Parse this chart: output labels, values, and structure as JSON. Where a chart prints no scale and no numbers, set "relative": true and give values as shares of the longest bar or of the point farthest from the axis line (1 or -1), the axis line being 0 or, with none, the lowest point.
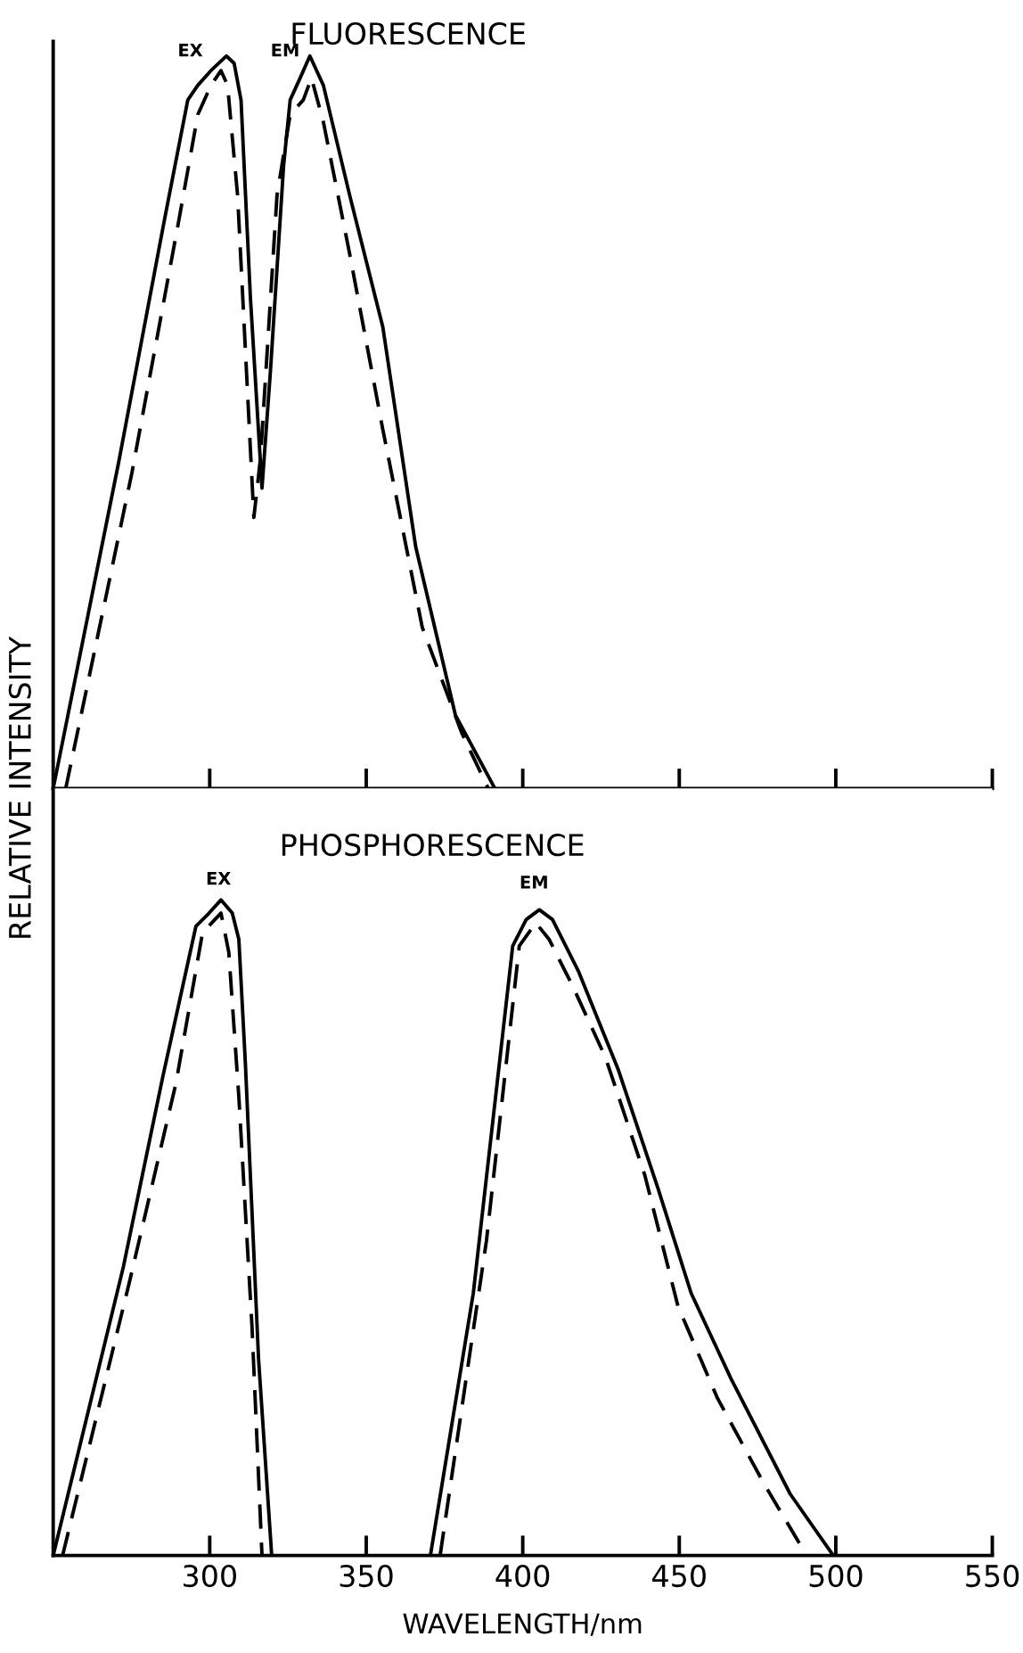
{
  "chart_data": [
    {
      "type": "line",
      "title": "FLUORESCENCE",
      "ylabel": "RELATIVE INTENSITY",
      "relative": true,
      "xlim": [
        250,
        550
      ],
      "xticks": [
        300,
        350,
        400,
        450,
        500,
        550
      ],
      "tick_labels": false,
      "legend": false,
      "grid": false,
      "marker": "none",
      "series": [
        {
          "color": "#000000",
          "line_style": "solid",
          "x": [
            250,
            270.9,
            285.7,
            293,
            296.2,
            300.4,
            305.3,
            307.8,
            310,
            313,
            316.7,
            319.4,
            323.6,
            325.7,
            328.9,
            332,
            336.3,
            344.7,
            355.3,
            365.8,
            378.5,
            391.1
          ],
          "values": [
            0,
            0.445,
            0.78,
            0.94,
            0.96,
            0.98,
            1.0,
            0.99,
            0.94,
            0.67,
            0.41,
            0.57,
            0.85,
            0.94,
            0.97,
            1.0,
            0.96,
            0.81,
            0.63,
            0.33,
            0.1,
            0
          ]
        },
        {
          "color": "#000000",
          "line_style": "dashed",
          "x": [
            254,
            275.1,
            289.9,
            296.2,
            300.4,
            303.6,
            305.7,
            308.9,
            314.1,
            316.2,
            321.5,
            325.7,
            329.9,
            332.5,
            336.3,
            344.7,
            355.3,
            367.9,
            380.6,
            389
          ],
          "values": [
            0,
            0.43,
            0.77,
            0.92,
            0.96,
            0.98,
            0.96,
            0.81,
            0.37,
            0.45,
            0.81,
            0.92,
            0.94,
            0.97,
            0.91,
            0.73,
            0.49,
            0.22,
            0.075,
            0
          ]
        }
      ],
      "annotations": [
        "EX",
        "EM"
      ]
    },
    {
      "type": "line",
      "title": "PHOSPHORESCENCE",
      "xlabel": "WAVELENGTH/nm",
      "relative": true,
      "xlim": [
        250,
        550
      ],
      "xticks": [
        300,
        350,
        400,
        450,
        500,
        550
      ],
      "legend": false,
      "grid": false,
      "marker": "none",
      "series": [
        {
          "color": "#000000",
          "line_style": "solid",
          "x": [
            250,
            272.4,
            285,
            295.6,
            299.8,
            303.6,
            307.2,
            309.3,
            311.4,
            315.6,
            319.8
          ],
          "values": [
            0,
            0.44,
            0.73,
            0.96,
            0.98,
            1.0,
            0.98,
            0.94,
            0.75,
            0.3,
            0
          ]
        },
        {
          "color": "#000000",
          "line_style": "dashed",
          "x": [
            253,
            274.5,
            289.2,
            297.7,
            303.6,
            306.1,
            309.3,
            313.5,
            316.7
          ],
          "values": [
            0,
            0.42,
            0.72,
            0.95,
            0.98,
            0.92,
            0.7,
            0.35,
            0
          ]
        },
        {
          "color": "#000000",
          "line_style": "solid",
          "x": [
            370.5,
            384.2,
            396.8,
            401.1,
            405.3,
            409.5,
            417.9,
            430.6,
            443.2,
            453.8,
            466.5,
            485.4,
            499.2
          ],
          "values": [
            0,
            0.4,
            0.93,
            0.97,
            0.985,
            0.97,
            0.89,
            0.74,
            0.56,
            0.4,
            0.27,
            0.094,
            0
          ]
        },
        {
          "color": "#000000",
          "line_style": "dashed",
          "x": [
            373.6,
            388.4,
            398.9,
            404.2,
            408.4,
            415.8,
            426.4,
            439,
            449.6,
            462.2,
            477,
            490.7
          ],
          "values": [
            0,
            0.48,
            0.93,
            0.965,
            0.94,
            0.87,
            0.76,
            0.58,
            0.38,
            0.24,
            0.11,
            0
          ]
        }
      ],
      "annotations": [
        "EX",
        "EM"
      ]
    }
  ]
}
